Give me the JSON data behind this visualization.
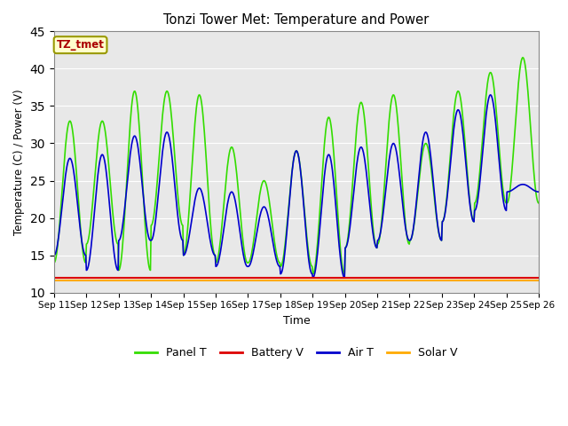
{
  "title": "Tonzi Tower Met: Temperature and Power",
  "xlabel": "Time",
  "ylabel": "Temperature (C) / Power (V)",
  "ylim": [
    10,
    45
  ],
  "tick_labels": [
    "Sep 11",
    "Sep 12",
    "Sep 13",
    "Sep 14",
    "Sep 15",
    "Sep 16",
    "Sep 17",
    "Sep 18",
    "Sep 19",
    "Sep 20",
    "Sep 21",
    "Sep 22",
    "Sep 23",
    "Sep 24",
    "Sep 25",
    "Sep 26"
  ],
  "legend_labels": [
    "Panel T",
    "Battery V",
    "Air T",
    "Solar V"
  ],
  "legend_colors": [
    "#33dd00",
    "#dd0000",
    "#0000cc",
    "#ffaa00"
  ],
  "annotation_text": "TZ_tmet",
  "annotation_color": "#aa0000",
  "annotation_bg": "#ffffcc",
  "annotation_border": "#999900",
  "plot_bg_color": "#e8e8e8",
  "fig_bg_color": "#ffffff",
  "grid_color": "#ffffff",
  "battery_v": 12.0,
  "solar_v": 11.6,
  "yticks": [
    10,
    15,
    20,
    25,
    30,
    35,
    40,
    45
  ],
  "n_days": 15
}
